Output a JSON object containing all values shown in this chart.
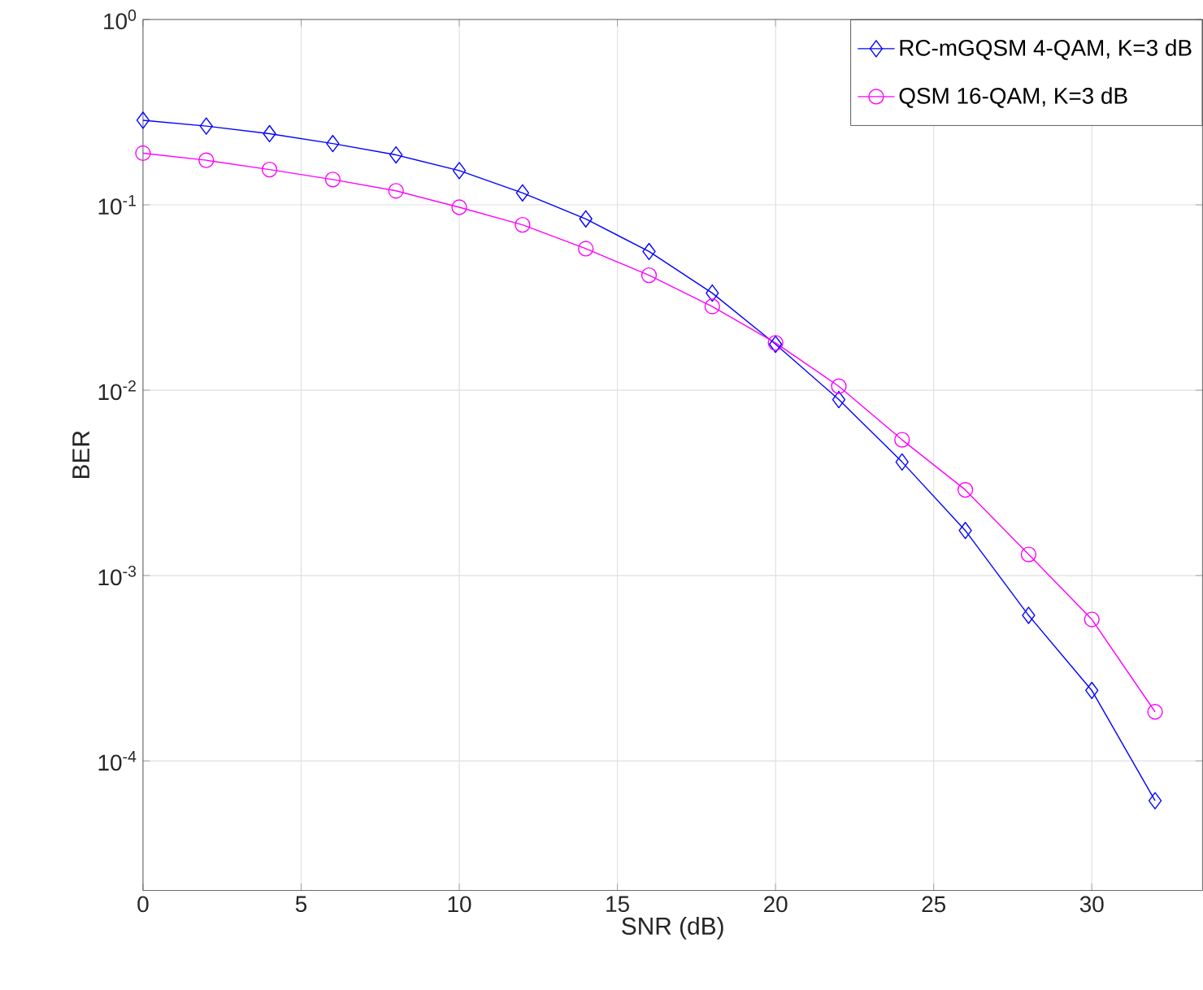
{
  "chart_data": {
    "type": "line",
    "xlabel": "SNR (dB)",
    "ylabel": "BER",
    "log": "y",
    "grid": true,
    "legend": "top right",
    "line_style": "solid",
    "x": [
      0,
      2,
      4,
      6,
      8,
      10,
      12,
      14,
      16,
      18,
      20,
      22,
      24,
      26,
      28,
      30,
      32
    ],
    "xlim": [
      0,
      33.5
    ],
    "xticks": [
      0,
      5,
      10,
      15,
      20,
      25,
      30
    ],
    "ylim": [
      2e-05,
      1
    ],
    "yticks": [
      {
        "value": 1,
        "label": "10$^{0}$"
      },
      {
        "value": 0.1,
        "label": "10$^{-1}$"
      },
      {
        "value": 0.01,
        "label": "10$^{-2}$"
      },
      {
        "value": 0.001,
        "label": "10$^{-3}$"
      },
      {
        "value": 0.0001,
        "label": "10$^{-4}$"
      }
    ],
    "series": [
      {
        "name": "RC-mGQSM 4-QAM, K=3 dB",
        "color": "#0000ff",
        "marker": "diamond",
        "values": [
          0.286,
          0.266,
          0.242,
          0.214,
          0.186,
          0.153,
          0.116,
          0.084,
          0.056,
          0.0334,
          0.0177,
          0.0089,
          0.0041,
          0.00175,
          0.00061,
          0.00024,
          6.1e-05
        ]
      },
      {
        "name": "QSM 16-QAM, K=3 dB",
        "color": "#ff00ff",
        "marker": "circle",
        "values": [
          0.19,
          0.174,
          0.155,
          0.137,
          0.119,
          0.097,
          0.078,
          0.058,
          0.0417,
          0.0283,
          0.018,
          0.0105,
          0.0054,
          0.0029,
          0.0013,
          0.00058,
          0.000184
        ]
      }
    ]
  }
}
